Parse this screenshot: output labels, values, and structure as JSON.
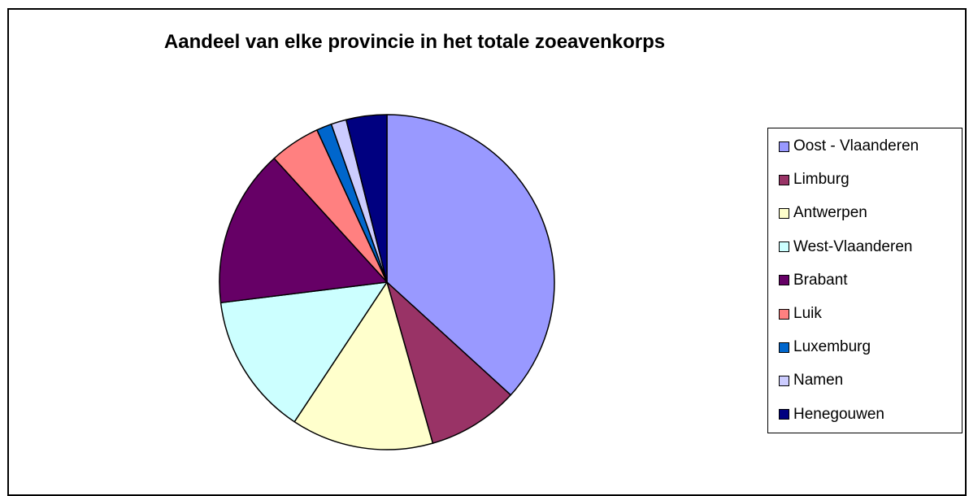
{
  "chart_data": {
    "type": "pie",
    "title": "Aandeel van elke provincie in het totale zoeavenkorps",
    "categories": [
      "Oost - Vlaanderen",
      "Limburg",
      "Antwerpen",
      "West-Vlaanderen",
      "Brabant",
      "Luik",
      "Luxemburg",
      "Namen",
      "Henegouwen"
    ],
    "values": [
      37.5,
      9.0,
      14.0,
      14.0,
      15.5,
      5.0,
      1.5,
      1.5,
      4.0
    ],
    "unit": "percent (estimated share of total)",
    "colors": [
      "#9999ff",
      "#993366",
      "#ffffcc",
      "#ccffff",
      "#660066",
      "#ff8080",
      "#0066cc",
      "#ccccff",
      "#000080"
    ],
    "start_angle": "12 o'clock",
    "direction": "clockwise",
    "legend_position": "right"
  }
}
